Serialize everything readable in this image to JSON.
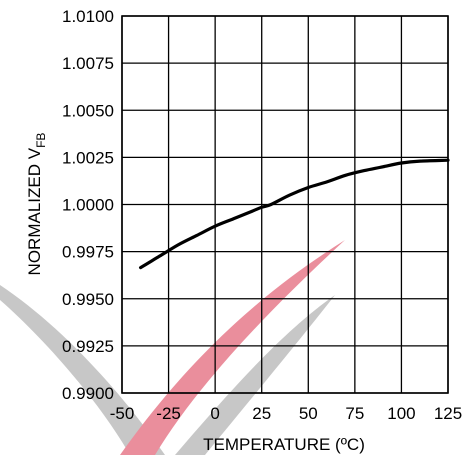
{
  "chart_data": {
    "type": "line",
    "xlabel": "TEMPERATURE (ºC)",
    "ylabel_main": "NORMALIZED V",
    "ylabel_sub": "FB",
    "xlim": [
      -50,
      125
    ],
    "ylim": [
      0.99,
      1.01
    ],
    "xticks": [
      -50,
      -25,
      0,
      25,
      50,
      75,
      100,
      125
    ],
    "xtick_labels": [
      "-50",
      "-25",
      "0",
      "25",
      "50",
      "75",
      "100",
      "125"
    ],
    "yticks": [
      0.99,
      0.9925,
      0.995,
      0.9975,
      1.0,
      1.0025,
      1.005,
      1.0075,
      1.01
    ],
    "ytick_labels": [
      "0.9900",
      "0.9925",
      "0.9950",
      "0.9975",
      "1.0000",
      "1.0025",
      "1.0050",
      "1.0075",
      "1.0100"
    ],
    "grid": true,
    "series": [
      {
        "x": [
          -40,
          -30,
          -20,
          -10,
          0,
          10,
          20,
          25,
          30,
          40,
          50,
          60,
          70,
          80,
          90,
          100,
          110,
          125
        ],
        "y": [
          0.99665,
          0.99725,
          0.99785,
          0.99835,
          0.99885,
          0.99925,
          0.99965,
          0.99985,
          1.0,
          1.0005,
          1.0009,
          1.0012,
          1.00155,
          1.0018,
          1.002,
          1.0022,
          1.0023,
          1.00235
        ]
      }
    ],
    "colors": {
      "line": "#000000",
      "grid": "#000000",
      "watermark_red": "#d9334d",
      "watermark_gray": "#9a9a9a"
    }
  }
}
